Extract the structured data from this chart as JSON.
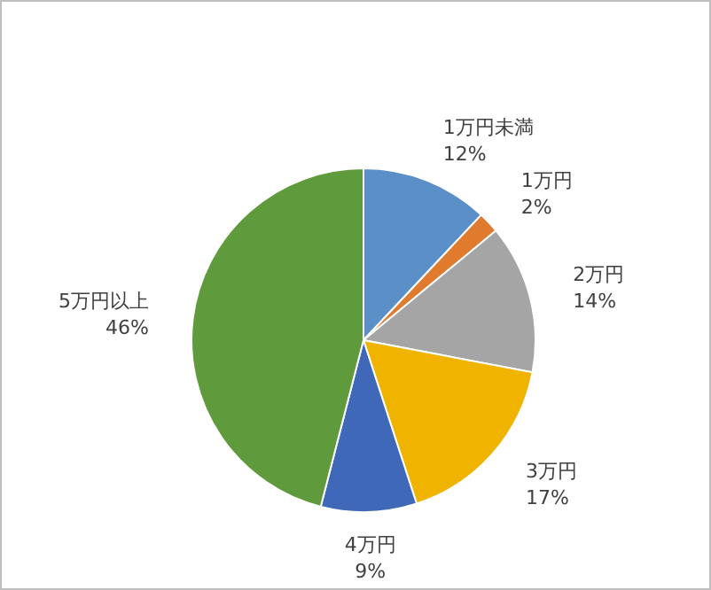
{
  "chart_data": {
    "type": "pie",
    "categories": [
      "1万円未満",
      "1万円",
      "2万円",
      "3万円",
      "4万円",
      "5万円以上"
    ],
    "values": [
      12,
      2,
      14,
      17,
      9,
      46
    ],
    "colors": [
      "#5b8fc8",
      "#e07b2e",
      "#a5a5a5",
      "#f0b400",
      "#3f68b8",
      "#5f9a3c"
    ],
    "value_labels": [
      "12%",
      "2%",
      "14%",
      "17%",
      "9%",
      "46%"
    ]
  }
}
